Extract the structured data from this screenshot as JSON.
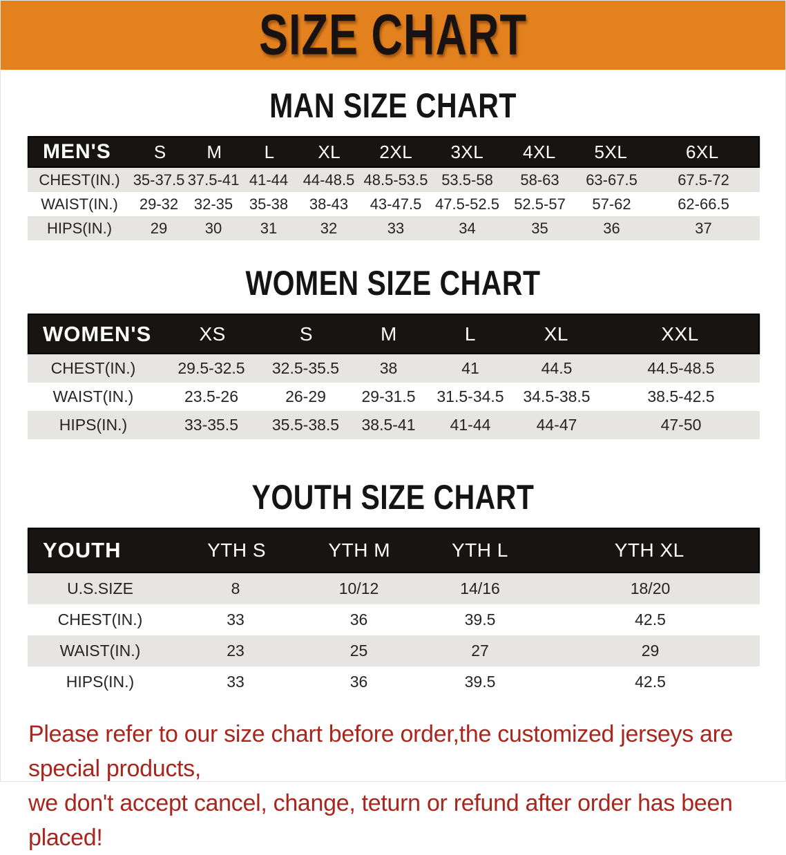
{
  "banner": {
    "title": "SIZE CHART",
    "bg_color": "#E2811E",
    "text_color": "#181310"
  },
  "sections": [
    {
      "heading": "MAN SIZE CHART",
      "table": {
        "header_label": "MEN'S",
        "columns": [
          "S",
          "M",
          "L",
          "XL",
          "2XL",
          "3XL",
          "4XL",
          "5XL",
          "6XL"
        ],
        "rows": [
          {
            "label": "CHEST(IN.)",
            "values": [
              "35-37.5",
              "37.5-41",
              "41-44",
              "44-48.5",
              "48.5-53.5",
              "53.5-58",
              "58-63",
              "63-67.5",
              "67.5-72"
            ]
          },
          {
            "label": "WAIST(IN.)",
            "values": [
              "29-32",
              "32-35",
              "35-38",
              "38-43",
              "43-47.5",
              "47.5-52.5",
              "52.5-57",
              "57-62",
              "62-66.5"
            ]
          },
          {
            "label": "HIPS(IN.)",
            "values": [
              "29",
              "30",
              "31",
              "32",
              "33",
              "34",
              "35",
              "36",
              "37"
            ]
          }
        ]
      }
    },
    {
      "heading": "WOMEN SIZE CHART",
      "table": {
        "header_label": "WOMEN'S",
        "columns": [
          "XS",
          "S",
          "M",
          "L",
          "XL",
          "XXL"
        ],
        "rows": [
          {
            "label": "CHEST(IN.)",
            "values": [
              "29.5-32.5",
              "32.5-35.5",
              "38",
              "41",
              "44.5",
              "44.5-48.5"
            ]
          },
          {
            "label": "WAIST(IN.)",
            "values": [
              "23.5-26",
              "26-29",
              "29-31.5",
              "31.5-34.5",
              "34.5-38.5",
              "38.5-42.5"
            ]
          },
          {
            "label": "HIPS(IN.)",
            "values": [
              "33-35.5",
              "35.5-38.5",
              "38.5-41",
              "41-44",
              "44-47",
              "47-50"
            ]
          }
        ]
      }
    },
    {
      "heading": "YOUTH SIZE CHART",
      "table": {
        "header_label": "YOUTH",
        "columns": [
          "YTH S",
          "YTH M",
          "YTH L",
          "YTH XL"
        ],
        "rows": [
          {
            "label": "U.S.SIZE",
            "values": [
              "8",
              "10/12",
              "14/16",
              "18/20"
            ]
          },
          {
            "label": "CHEST(IN.)",
            "values": [
              "33",
              "36",
              "39.5",
              "42.5"
            ]
          },
          {
            "label": "WAIST(IN.)",
            "values": [
              "23",
              "25",
              "27",
              "29"
            ]
          },
          {
            "label": "HIPS(IN.)",
            "values": [
              "33",
              "36",
              "39.5",
              "42.5"
            ]
          }
        ]
      }
    }
  ],
  "footer_note": {
    "line1": "Please refer to our size chart before order,the customized jerseys are special products,",
    "line2": "we don't accept cancel, change, teturn or refund after order has been placed!",
    "color": "#A8261D"
  }
}
